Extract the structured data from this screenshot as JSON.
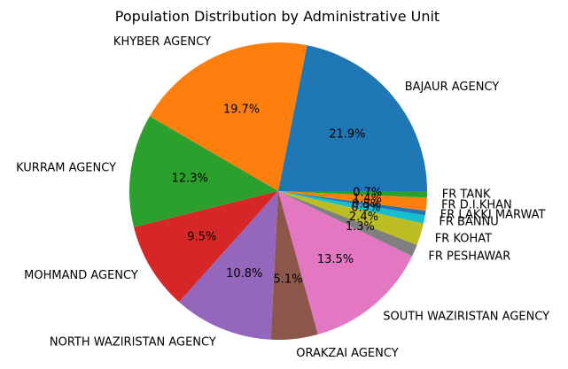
{
  "chart_data": {
    "type": "pie",
    "title": "Population Distribution by Administrative Unit",
    "start_angle_deg": 0,
    "direction": "counterclockwise",
    "slices": [
      {
        "label": "BAJAUR AGENCY",
        "percent_label": "21.9%",
        "value": 21.9,
        "color": "#1f77b4"
      },
      {
        "label": "KHYBER AGENCY",
        "percent_label": "19.7%",
        "value": 19.7,
        "color": "#ff7f0e"
      },
      {
        "label": "KURRAM AGENCY",
        "percent_label": "12.3%",
        "value": 12.3,
        "color": "#2ca02c"
      },
      {
        "label": "MOHMAND AGENCY",
        "percent_label": "9.5%",
        "value": 9.5,
        "color": "#d62728"
      },
      {
        "label": "NORTH WAZIRISTAN AGENCY",
        "percent_label": "10.8%",
        "value": 10.8,
        "color": "#9467bd"
      },
      {
        "label": "ORAKZAI AGENCY",
        "percent_label": "5.1%",
        "value": 5.1,
        "color": "#8c564b"
      },
      {
        "label": "SOUTH WAZIRISTAN AGENCY",
        "percent_label": "13.5%",
        "value": 13.5,
        "color": "#e377c2"
      },
      {
        "label": "FR PESHAWAR",
        "percent_label": "1.3%",
        "value": 1.3,
        "color": "#7f7f7f"
      },
      {
        "label": "FR KOHAT",
        "percent_label": "2.4%",
        "value": 2.4,
        "color": "#bcbd22"
      },
      {
        "label": "FR BANNU",
        "percent_label": "0.9%",
        "value": 0.9,
        "color": "#17becf"
      },
      {
        "label": "FR LAKKI MARWAT",
        "percent_label": "0.5%",
        "value": 0.5,
        "color": "#1f77b4"
      },
      {
        "label": "FR D.I.KHAN",
        "percent_label": "1.4%",
        "value": 1.4,
        "color": "#ff7f0e"
      },
      {
        "label": "FR TANK",
        "percent_label": "0.7%",
        "value": 0.7,
        "color": "#2ca02c"
      }
    ]
  }
}
